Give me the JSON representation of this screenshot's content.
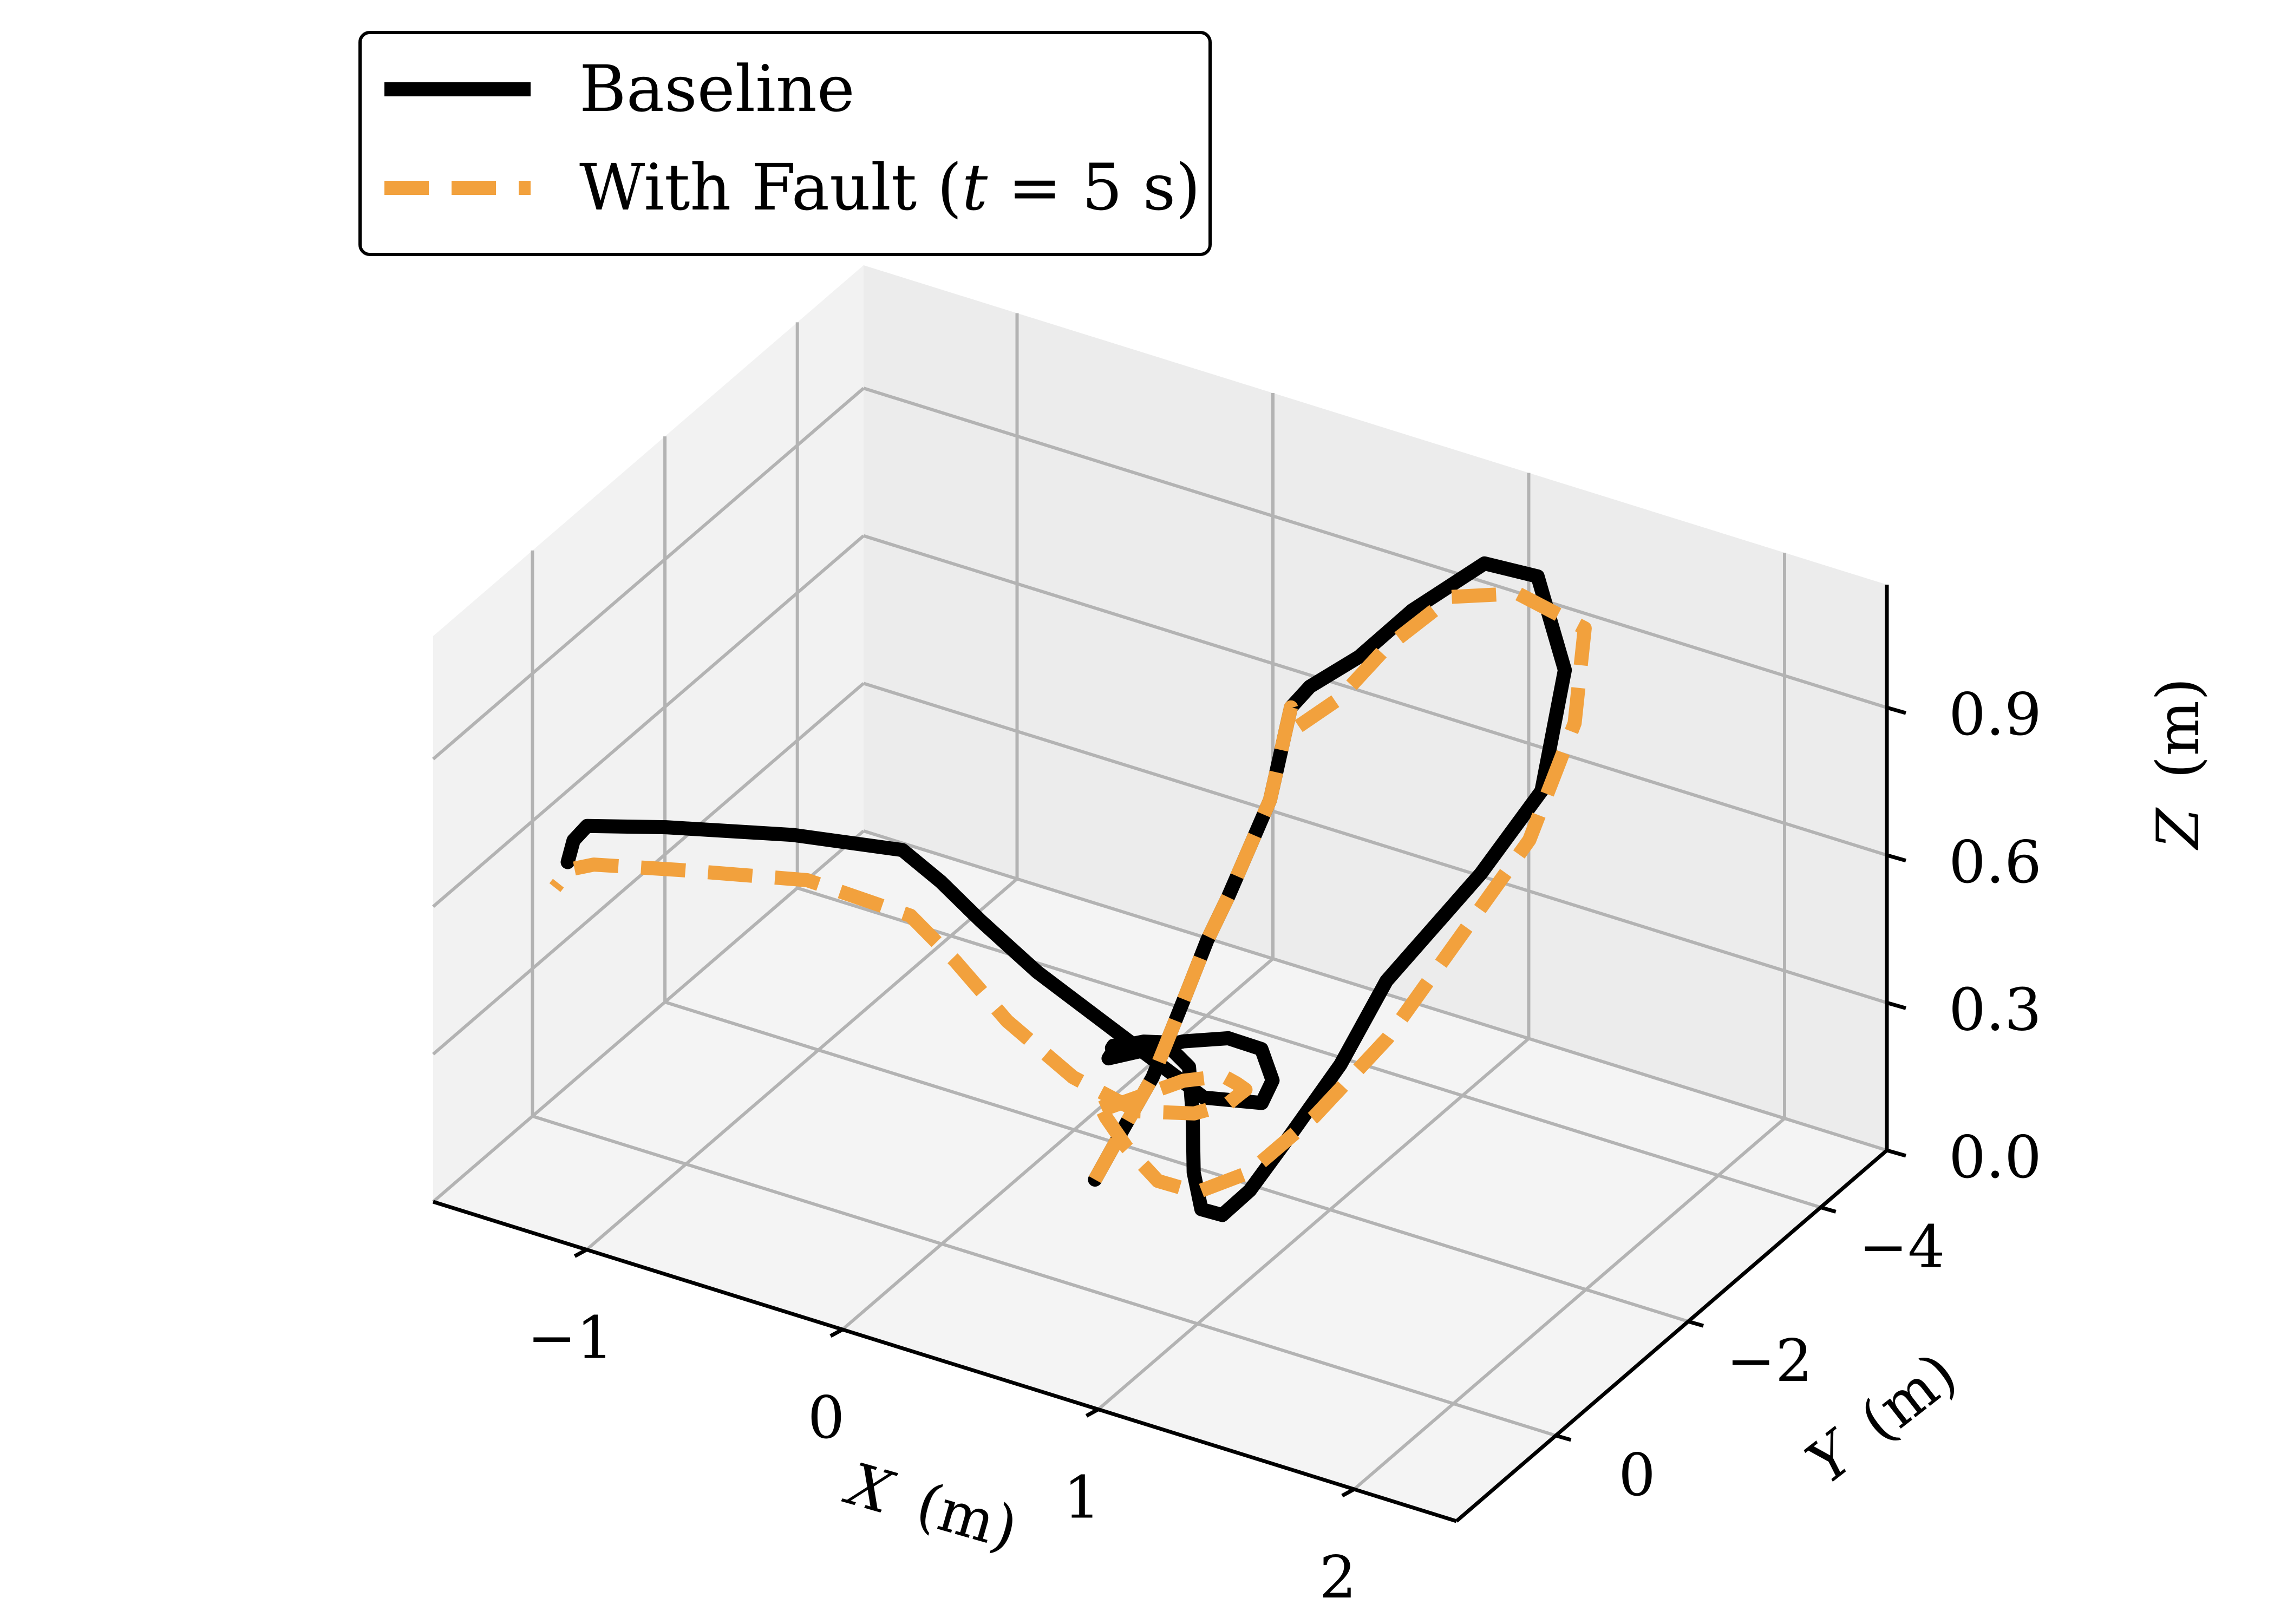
{
  "chart_data": {
    "type": "line",
    "projection": "3d",
    "title": "",
    "xlabel": "X (m)",
    "ylabel": "Y (m)",
    "zlabel": "Z (m)",
    "xlim": [
      -1.6,
      2.4
    ],
    "ylim": [
      -5,
      1.5
    ],
    "zlim": [
      0,
      1.15
    ],
    "x_ticks": [
      -1,
      0,
      1,
      2
    ],
    "y_ticks": [
      -4,
      -2,
      0
    ],
    "z_ticks": [
      0.0,
      0.3,
      0.6,
      0.9
    ],
    "x_tick_labels": [
      "−1",
      "0",
      "1",
      "2"
    ],
    "y_tick_labels": [
      "−4",
      "−2",
      "0"
    ],
    "z_tick_labels": [
      "0.0",
      "0.3",
      "0.6",
      "0.9"
    ],
    "grid": true,
    "legend_position": "top-left",
    "series": [
      {
        "name": "Baseline",
        "color": "#000000",
        "style": "solid",
        "x": [
          0.34,
          0.36,
          0.41,
          0.49,
          0.52,
          0.55,
          0.58,
          0.61,
          0.64,
          0.74,
          0.88,
          0.96,
          1.06,
          1.19,
          1.4,
          1.49,
          1.46,
          1.35,
          1.3,
          1.26,
          1.23,
          1.2,
          1.17,
          1.14,
          1.11,
          1.07,
          1.0,
          0.97,
          0.94,
          0.93,
          0.95,
          0.98,
          1.0,
          1.02,
          1.04,
          1.1,
          1.12,
          1.12,
          1.06,
          0.94,
          0.74,
          0.5,
          0.27,
          0.1,
          -0.03,
          -0.18,
          -0.48,
          -0.82,
          -1.05,
          -1.09,
          -1.1
        ],
        "y": [
          -1.0,
          -1.3,
          -1.6,
          -1.8,
          -2.0,
          -2.2,
          -2.4,
          -2.6,
          -2.8,
          -2.7,
          -2.9,
          -3.4,
          -4.1,
          -4.4,
          -4.0,
          -3.3,
          -2.5,
          -1.5,
          -1.0,
          -0.4,
          0.1,
          0.4,
          0.6,
          0.6,
          0.5,
          0.4,
          0.5,
          0.7,
          0.9,
          1.0,
          1.1,
          1.2,
          1.3,
          1.4,
          1.5,
          0.6,
          0.0,
          -0.5,
          -0.9,
          -1.2,
          -1.1,
          -0.8,
          -0.4,
          -0.2,
          -0.1,
          -0.1,
          0.4,
          1.0,
          1.3,
          1.35,
          1.4
        ],
        "z": [
          0.07,
          0.13,
          0.22,
          0.38,
          0.47,
          0.54,
          0.62,
          0.7,
          0.87,
          0.94,
          1.0,
          1.05,
          1.08,
          1.04,
          0.93,
          0.78,
          0.7,
          0.58,
          0.46,
          0.38,
          0.32,
          0.3,
          0.33,
          0.4,
          0.5,
          0.58,
          0.63,
          0.65,
          0.66,
          0.67,
          0.68,
          0.69,
          0.7,
          0.71,
          0.72,
          0.66,
          0.6,
          0.52,
          0.4,
          0.3,
          0.29,
          0.41,
          0.55,
          0.65,
          0.72,
          0.76,
          0.8,
          0.83,
          0.83,
          0.8,
          0.76
        ]
      },
      {
        "name": "With Fault (t = 5 s)",
        "color": "#f2a13d",
        "style": "dashed",
        "x": [
          0.34,
          0.36,
          0.41,
          0.49,
          0.52,
          0.55,
          0.58,
          0.61,
          0.64,
          0.74,
          0.88,
          0.96,
          1.06,
          1.19,
          1.4,
          1.49,
          1.52,
          1.45,
          1.38,
          1.3,
          1.2,
          1.1,
          1.0,
          0.93,
          0.9,
          0.92,
          0.96,
          1.0,
          1.04,
          1.1,
          1.1,
          1.05,
          0.98,
          0.88,
          0.78,
          0.65,
          0.48,
          0.28,
          0.1,
          -0.05,
          -0.2,
          -0.5,
          -0.82,
          -1.05,
          -1.12,
          -1.15
        ],
        "y": [
          -1.0,
          -1.3,
          -1.6,
          -1.8,
          -2.0,
          -2.2,
          -2.4,
          -2.6,
          -2.8,
          -2.5,
          -2.6,
          -3.0,
          -3.6,
          -4.1,
          -4.3,
          -3.8,
          -3.0,
          -2.2,
          -1.4,
          -0.6,
          0.0,
          0.4,
          0.6,
          0.8,
          1.0,
          1.2,
          1.3,
          1.4,
          1.5,
          0.6,
          0.0,
          -0.4,
          -0.8,
          -1.1,
          -1.3,
          -1.3,
          -1.1,
          -0.9,
          -0.6,
          -0.4,
          -0.3,
          0.1,
          0.8,
          1.2,
          1.3,
          1.4
        ],
        "z": [
          0.07,
          0.13,
          0.22,
          0.38,
          0.47,
          0.54,
          0.62,
          0.7,
          0.87,
          0.88,
          0.95,
          1.02,
          1.07,
          1.04,
          0.98,
          0.86,
          0.72,
          0.6,
          0.48,
          0.4,
          0.34,
          0.33,
          0.36,
          0.44,
          0.52,
          0.58,
          0.61,
          0.62,
          0.62,
          0.58,
          0.52,
          0.45,
          0.38,
          0.32,
          0.26,
          0.22,
          0.22,
          0.28,
          0.4,
          0.52,
          0.6,
          0.67,
          0.72,
          0.74,
          0.73,
          0.7
        ]
      }
    ]
  },
  "legend": {
    "baseline_label": "Baseline",
    "fault_label_prefix": "With Fault (",
    "fault_label_var": "t",
    "fault_label_eq": " = 5 s",
    "fault_label_suffix": ")"
  },
  "axes": {
    "x_title_var": "X",
    "x_title_unit": "(m)",
    "y_title_var": "Y",
    "y_title_unit": "(m)",
    "z_title_var": "Z",
    "z_title_unit": "(m)"
  },
  "colors": {
    "baseline": "#000000",
    "fault": "#f2a13d",
    "pane_left": "#f2f2f2",
    "pane_back": "#ececec",
    "pane_floor": "#f4f4f4",
    "grid": "#b3b3b3"
  }
}
